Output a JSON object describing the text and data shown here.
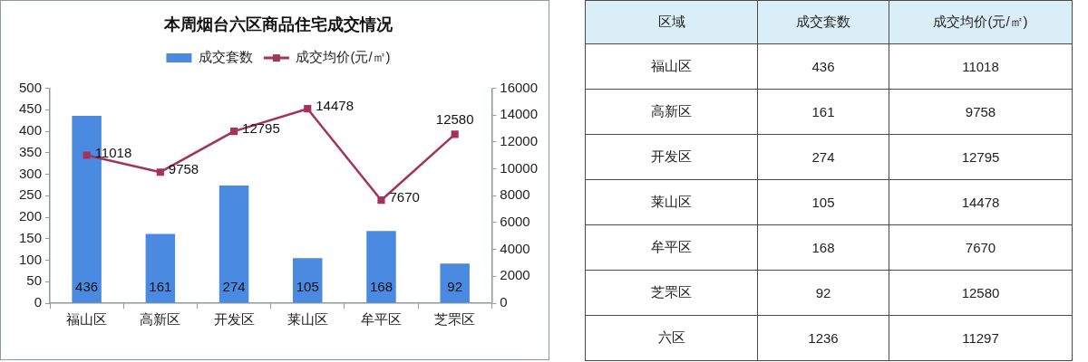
{
  "chart_data": [
    {
      "type": "bar",
      "title": "本周烟台六区商品住宅成交情况",
      "categories": [
        "福山区",
        "高新区",
        "开发区",
        "莱山区",
        "牟平区",
        "芝罘区"
      ],
      "series": [
        {
          "name": "成交套数",
          "type": "bar",
          "color": "#4a8ae0",
          "values": [
            436,
            161,
            274,
            105,
            168,
            92
          ]
        },
        {
          "name": "成交均价(元/㎡)",
          "type": "line",
          "axis": "y2",
          "color": "#a3325c",
          "marker": "square",
          "values": [
            11018,
            9758,
            12795,
            14478,
            7670,
            12580
          ]
        }
      ],
      "ylim": [
        0,
        500
      ],
      "yticks": [
        0,
        50,
        100,
        150,
        200,
        250,
        300,
        350,
        400,
        450,
        500
      ],
      "y2lim": [
        0,
        16000
      ],
      "y2ticks": [
        0,
        2000,
        4000,
        6000,
        8000,
        10000,
        12000,
        14000,
        16000
      ],
      "legend": "top",
      "data_labels": true
    },
    {
      "type": "other",
      "xlabel": "区域",
      "categories": [
        "福山区",
        "高新区",
        "开发区",
        "莱山区",
        "牟平区",
        "芝罘区",
        "六区"
      ],
      "series": [
        {
          "name": "成交套数",
          "values": [
            436,
            161,
            274,
            105,
            168,
            92,
            1236
          ]
        },
        {
          "name": "成交均价(元/㎡)",
          "values": [
            11018,
            9758,
            12795,
            14478,
            7670,
            12580,
            11297
          ]
        }
      ],
      "data_labels": true
    }
  ]
}
